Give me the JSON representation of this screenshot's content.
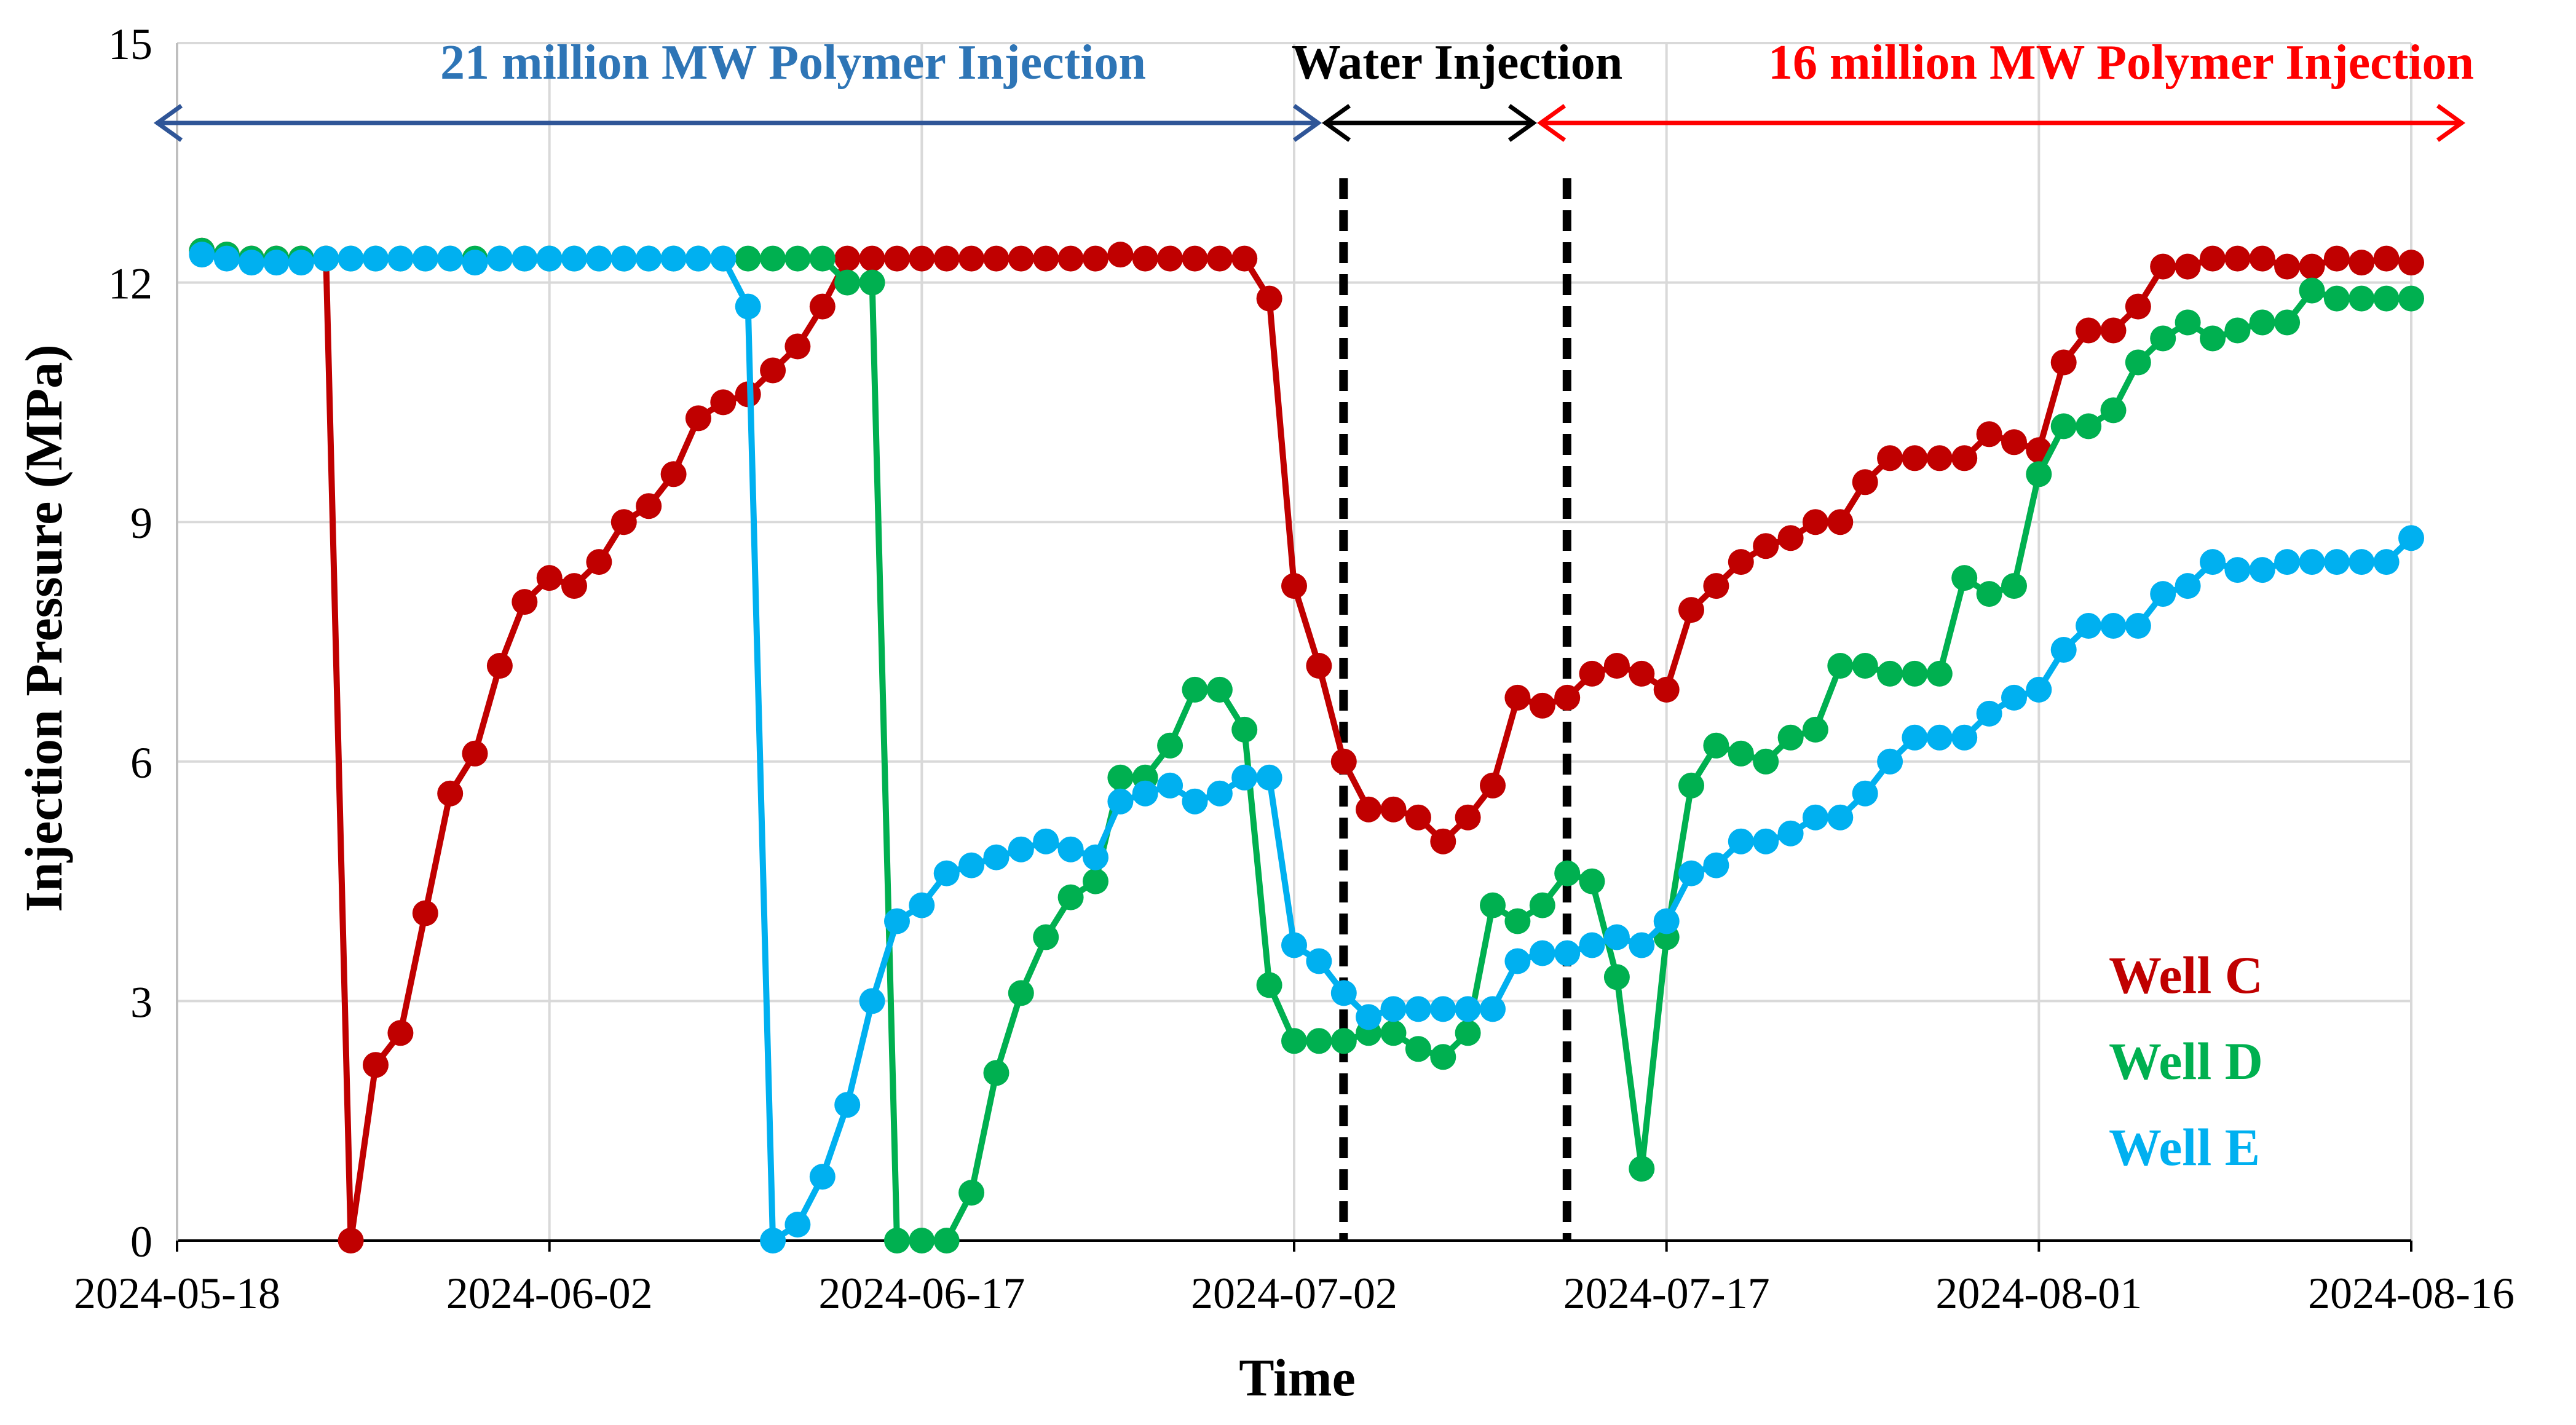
{
  "chart_data": {
    "type": "line",
    "title": "",
    "xlabel": "Time",
    "ylabel": "Injection Pressure (MPa)",
    "ylim": [
      0,
      15
    ],
    "yticks": [
      0,
      3,
      6,
      9,
      12,
      15
    ],
    "xlim": [
      "2024-05-18",
      "2024-08-16"
    ],
    "xticks": [
      "2024-05-18",
      "2024-06-02",
      "2024-06-17",
      "2024-07-02",
      "2024-07-17",
      "2024-08-01",
      "2024-08-16"
    ],
    "grid": true,
    "legend_position": "bottom-right",
    "phases": [
      {
        "label": "21 million MW Polymer Injection",
        "start": "2024-05-18",
        "end": "2024-07-03",
        "color": "#2e75b6",
        "arrow_color": "#2f5597"
      },
      {
        "label": "Water Injection",
        "start": "2024-07-03",
        "end": "2024-07-12",
        "color": "#000000",
        "arrow_color": "#000000"
      },
      {
        "label": "16 million MW Polymer Injection",
        "start": "2024-07-12",
        "end": "2024-08-18",
        "color": "#ff0000",
        "arrow_color": "#ff0000"
      }
    ],
    "boundaries": [
      "2024-07-03",
      "2024-07-12"
    ],
    "x": [
      "2024-05-19",
      "2024-05-20",
      "2024-05-21",
      "2024-05-22",
      "2024-05-23",
      "2024-05-24",
      "2024-05-25",
      "2024-05-26",
      "2024-05-27",
      "2024-05-28",
      "2024-05-29",
      "2024-05-30",
      "2024-05-31",
      "2024-06-01",
      "2024-06-02",
      "2024-06-03",
      "2024-06-04",
      "2024-06-05",
      "2024-06-06",
      "2024-06-07",
      "2024-06-08",
      "2024-06-09",
      "2024-06-10",
      "2024-06-11",
      "2024-06-12",
      "2024-06-13",
      "2024-06-14",
      "2024-06-15",
      "2024-06-16",
      "2024-06-17",
      "2024-06-18",
      "2024-06-19",
      "2024-06-20",
      "2024-06-21",
      "2024-06-22",
      "2024-06-23",
      "2024-06-24",
      "2024-06-25",
      "2024-06-26",
      "2024-06-27",
      "2024-06-28",
      "2024-06-29",
      "2024-06-30",
      "2024-07-01",
      "2024-07-02",
      "2024-07-03",
      "2024-07-04",
      "2024-07-05",
      "2024-07-06",
      "2024-07-07",
      "2024-07-08",
      "2024-07-09",
      "2024-07-10",
      "2024-07-11",
      "2024-07-12",
      "2024-07-13",
      "2024-07-14",
      "2024-07-15",
      "2024-07-16",
      "2024-07-17",
      "2024-07-18",
      "2024-07-19",
      "2024-07-20",
      "2024-07-21",
      "2024-07-22",
      "2024-07-23",
      "2024-07-24",
      "2024-07-25",
      "2024-07-26",
      "2024-07-27",
      "2024-07-28",
      "2024-07-29",
      "2024-07-30",
      "2024-07-31",
      "2024-08-01",
      "2024-08-02",
      "2024-08-03",
      "2024-08-04",
      "2024-08-05",
      "2024-08-06",
      "2024-08-07",
      "2024-08-08",
      "2024-08-09",
      "2024-08-10",
      "2024-08-11",
      "2024-08-12",
      "2024-08-13",
      "2024-08-14",
      "2024-08-15",
      "2024-08-16"
    ],
    "series": [
      {
        "name": "Well C",
        "color": "#c00000",
        "values": [
          12.4,
          12.35,
          12.3,
          12.3,
          12.3,
          12.3,
          0,
          2.2,
          2.6,
          4.1,
          5.6,
          6.1,
          7.2,
          8.0,
          8.3,
          8.2,
          8.5,
          9.0,
          9.2,
          9.6,
          10.3,
          10.5,
          10.6,
          10.9,
          11.2,
          11.7,
          12.3,
          12.3,
          12.3,
          12.3,
          12.3,
          12.3,
          12.3,
          12.3,
          12.3,
          12.3,
          12.3,
          12.35,
          12.3,
          12.3,
          12.3,
          12.3,
          12.3,
          11.8,
          8.2,
          7.2,
          6.0,
          5.4,
          5.4,
          5.3,
          5.0,
          5.3,
          5.7,
          6.8,
          6.7,
          6.8,
          7.1,
          7.2,
          7.1,
          6.9,
          7.9,
          8.2,
          8.5,
          8.7,
          8.8,
          9.0,
          9.0,
          9.5,
          9.8,
          9.8,
          9.8,
          9.8,
          10.1,
          10.0,
          9.9,
          11.0,
          11.4,
          11.4,
          11.7,
          12.2,
          12.2,
          12.3,
          12.3,
          12.3,
          12.2,
          12.2,
          12.3,
          12.25,
          12.3,
          12.25
        ]
      },
      {
        "name": "Well D",
        "color": "#00b050",
        "values": [
          12.4,
          12.35,
          12.3,
          12.3,
          12.3,
          12.3,
          12.3,
          12.3,
          12.3,
          12.3,
          12.3,
          12.3,
          12.3,
          12.3,
          12.3,
          12.3,
          12.3,
          12.3,
          12.3,
          12.3,
          12.3,
          12.3,
          12.3,
          12.3,
          12.3,
          12.3,
          12.0,
          12.0,
          0,
          0,
          0,
          0.6,
          2.1,
          3.1,
          3.8,
          4.3,
          4.5,
          5.8,
          5.8,
          6.2,
          6.9,
          6.9,
          6.4,
          3.2,
          2.5,
          2.5,
          2.5,
          2.6,
          2.6,
          2.4,
          2.3,
          2.6,
          4.2,
          4.0,
          4.2,
          4.6,
          4.5,
          3.3,
          0.9,
          3.8,
          5.7,
          6.2,
          6.1,
          6.0,
          6.3,
          6.4,
          7.2,
          7.2,
          7.1,
          7.1,
          7.1,
          8.3,
          8.1,
          8.2,
          9.6,
          10.2,
          10.2,
          10.4,
          11.0,
          11.3,
          11.5,
          11.3,
          11.4,
          11.5,
          11.5,
          11.9,
          11.8,
          11.8,
          11.8,
          11.8
        ]
      },
      {
        "name": "Well E",
        "color": "#00b0f0",
        "values": [
          12.35,
          12.3,
          12.25,
          12.25,
          12.25,
          12.3,
          12.3,
          12.3,
          12.3,
          12.3,
          12.3,
          12.25,
          12.3,
          12.3,
          12.3,
          12.3,
          12.3,
          12.3,
          12.3,
          12.3,
          12.3,
          12.3,
          11.7,
          0,
          0.2,
          0.8,
          1.7,
          3.0,
          4.0,
          4.2,
          4.6,
          4.7,
          4.8,
          4.9,
          5.0,
          4.9,
          4.8,
          5.5,
          5.6,
          5.7,
          5.5,
          5.6,
          5.8,
          5.8,
          3.7,
          3.5,
          3.1,
          2.8,
          2.9,
          2.9,
          2.9,
          2.9,
          2.9,
          3.5,
          3.6,
          3.6,
          3.7,
          3.8,
          3.7,
          4.0,
          4.6,
          4.7,
          5.0,
          5.0,
          5.1,
          5.3,
          5.3,
          5.6,
          6.0,
          6.3,
          6.3,
          6.3,
          6.6,
          6.8,
          6.9,
          7.4,
          7.7,
          7.7,
          7.7,
          8.1,
          8.2,
          8.5,
          8.4,
          8.4,
          8.5,
          8.5,
          8.5,
          8.5,
          8.5,
          8.8
        ]
      }
    ]
  }
}
